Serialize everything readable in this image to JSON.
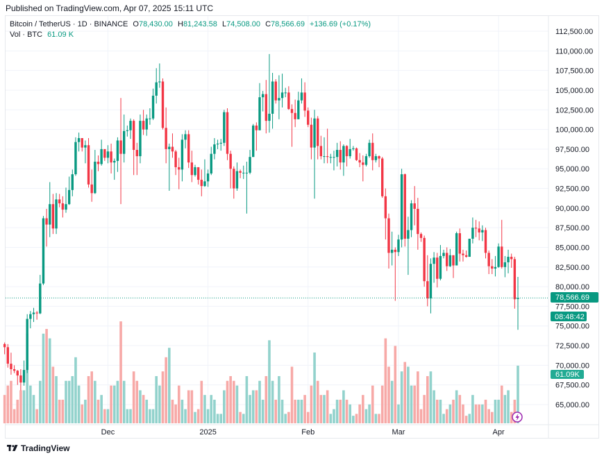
{
  "published": "Published on TradingView.com, Apr 07, 2025 15:11 UTC",
  "legend": {
    "symbol": "Bitcoin / TetherUS · 1D · BINANCE",
    "o_label": "O",
    "open": "78,430.00",
    "h_label": "H",
    "high": "81,243.58",
    "l_label": "L",
    "low": "74,508.00",
    "c_label": "C",
    "close": "78,566.69",
    "change": "+136.69 (+0.17%)",
    "vol_label": "Vol · BTC",
    "vol_value": "61.09 K"
  },
  "colors": {
    "up": "#089981",
    "down": "#f23645",
    "vol_up": "#92d2cc",
    "vol_down": "#f7a9a7",
    "price_tag": "#089981",
    "vol_tag": "#22ab94",
    "event_icon": "#9c27b0"
  },
  "price_tag": {
    "price": "78,566.69",
    "countdown": "08:48:42"
  },
  "vol_tag": "61.09K",
  "brand": "TradingView",
  "event_icon": "lightning-icon",
  "chart_data": {
    "type": "candlestick",
    "title": "",
    "y_ticks": [
      "65,000.00",
      "67,500.00",
      "70,000.00",
      "72,500.00",
      "75,000.00",
      "77,500.00",
      "80,000.00",
      "82,500.00",
      "85,000.00",
      "87,500.00",
      "90,000.00",
      "92,500.00",
      "95,000.00",
      "97,500.00",
      "100,000.00",
      "102,500.00",
      "105,000.00",
      "107,500.00",
      "110,000.00",
      "112,500.00"
    ],
    "ylim": [
      62500,
      112500
    ],
    "x_ticks": [
      {
        "label": "Dec",
        "date": "2024-12-01"
      },
      {
        "label": "2025",
        "date": "2025-01-01"
      },
      {
        "label": "Feb",
        "date": "2025-02-01"
      },
      {
        "label": "Mar",
        "date": "2025-03-01"
      },
      {
        "label": "Apr",
        "date": "2025-04-01"
      }
    ],
    "grid": true,
    "columns": [
      "date",
      "open",
      "high",
      "low",
      "close",
      "volume_k"
    ],
    "candles": [
      [
        "2024-10-30",
        72700,
        72900,
        71400,
        72300,
        30
      ],
      [
        "2024-10-31",
        72300,
        72700,
        69700,
        70200,
        40
      ],
      [
        "2024-11-01",
        70200,
        71600,
        68800,
        69500,
        45
      ],
      [
        "2024-11-02",
        69500,
        70000,
        69000,
        69300,
        15
      ],
      [
        "2024-11-03",
        69300,
        69400,
        67500,
        68700,
        25
      ],
      [
        "2024-11-04",
        68700,
        69500,
        66800,
        67800,
        35
      ],
      [
        "2024-11-05",
        67800,
        70600,
        67400,
        69400,
        35
      ],
      [
        "2024-11-06",
        69400,
        76500,
        69000,
        75900,
        95
      ],
      [
        "2024-11-07",
        75900,
        76900,
        74700,
        76500,
        40
      ],
      [
        "2024-11-08",
        76500,
        77300,
        75500,
        76700,
        30
      ],
      [
        "2024-11-09",
        76700,
        76900,
        75800,
        76600,
        15
      ],
      [
        "2024-11-10",
        76600,
        81500,
        76500,
        80400,
        45
      ],
      [
        "2024-11-11",
        80400,
        89000,
        80200,
        88700,
        95
      ],
      [
        "2024-11-12",
        88700,
        89900,
        85100,
        87900,
        100
      ],
      [
        "2024-11-13",
        87900,
        93300,
        86300,
        90500,
        90
      ],
      [
        "2024-11-14",
        90500,
        91800,
        86700,
        87400,
        60
      ],
      [
        "2024-11-15",
        87400,
        91900,
        86700,
        91100,
        50
      ],
      [
        "2024-11-16",
        91100,
        91800,
        90100,
        90600,
        25
      ],
      [
        "2024-11-17",
        90600,
        91500,
        88800,
        89800,
        25
      ],
      [
        "2024-11-18",
        89800,
        92600,
        89400,
        90500,
        45
      ],
      [
        "2024-11-19",
        90500,
        94000,
        90400,
        92300,
        45
      ],
      [
        "2024-11-20",
        92300,
        94900,
        91500,
        94300,
        50
      ],
      [
        "2024-11-21",
        94300,
        99000,
        94100,
        98400,
        70
      ],
      [
        "2024-11-22",
        98400,
        99600,
        97200,
        98900,
        40
      ],
      [
        "2024-11-23",
        98900,
        98900,
        97200,
        97700,
        20
      ],
      [
        "2024-11-24",
        97700,
        98600,
        95700,
        98000,
        25
      ],
      [
        "2024-11-25",
        98000,
        98900,
        92600,
        93000,
        50
      ],
      [
        "2024-11-26",
        93000,
        94900,
        90800,
        91900,
        55
      ],
      [
        "2024-11-27",
        91900,
        97400,
        91800,
        95900,
        45
      ],
      [
        "2024-11-28",
        95900,
        96700,
        94700,
        95600,
        25
      ],
      [
        "2024-11-29",
        95600,
        98700,
        95400,
        97500,
        30
      ],
      [
        "2024-11-30",
        97500,
        97500,
        96000,
        96400,
        15
      ],
      [
        "2024-12-01",
        96400,
        98000,
        95700,
        97200,
        15
      ],
      [
        "2024-12-02",
        97200,
        98200,
        94400,
        95800,
        40
      ],
      [
        "2024-12-03",
        95800,
        96300,
        93600,
        96000,
        40
      ],
      [
        "2024-12-04",
        96000,
        99000,
        94600,
        98600,
        45
      ],
      [
        "2024-12-05",
        98600,
        104000,
        90500,
        96900,
        108
      ],
      [
        "2024-12-06",
        96900,
        101900,
        95800,
        99800,
        45
      ],
      [
        "2024-12-07",
        99800,
        100500,
        99100,
        99900,
        15
      ],
      [
        "2024-12-08",
        99900,
        101400,
        98800,
        101100,
        15
      ],
      [
        "2024-12-09",
        101100,
        101300,
        94200,
        97400,
        55
      ],
      [
        "2024-12-10",
        97400,
        98300,
        94200,
        96600,
        45
      ],
      [
        "2024-12-11",
        96600,
        101900,
        95700,
        101100,
        35
      ],
      [
        "2024-12-12",
        101100,
        102500,
        99300,
        100000,
        30
      ],
      [
        "2024-12-13",
        100000,
        101900,
        99200,
        101400,
        25
      ],
      [
        "2024-12-14",
        101400,
        102700,
        100600,
        101400,
        15
      ],
      [
        "2024-12-15",
        101400,
        105200,
        101200,
        104300,
        15
      ],
      [
        "2024-12-16",
        104300,
        107800,
        103300,
        106000,
        50
      ],
      [
        "2024-12-17",
        106000,
        108400,
        105300,
        106100,
        40
      ],
      [
        "2024-12-18",
        106100,
        106500,
        100000,
        100200,
        55
      ],
      [
        "2024-12-19",
        100200,
        102800,
        95700,
        97500,
        70
      ],
      [
        "2024-12-20",
        97500,
        98200,
        92200,
        97800,
        80
      ],
      [
        "2024-12-21",
        97800,
        99500,
        96400,
        97200,
        25
      ],
      [
        "2024-12-22",
        97200,
        97400,
        94200,
        95200,
        20
      ],
      [
        "2024-12-23",
        95200,
        96400,
        92400,
        94900,
        40
      ],
      [
        "2024-12-24",
        94900,
        99400,
        93400,
        98700,
        25
      ],
      [
        "2024-12-25",
        98700,
        99900,
        97600,
        99400,
        15
      ],
      [
        "2024-12-26",
        99400,
        99900,
        95100,
        95800,
        35
      ],
      [
        "2024-12-27",
        95800,
        97300,
        93300,
        94200,
        35
      ],
      [
        "2024-12-28",
        94200,
        95500,
        94000,
        95200,
        12
      ],
      [
        "2024-12-29",
        95200,
        95200,
        93000,
        93600,
        15
      ],
      [
        "2024-12-30",
        93600,
        94900,
        91500,
        92800,
        45
      ],
      [
        "2024-12-31",
        92800,
        96200,
        92700,
        93400,
        30
      ],
      [
        "2025-01-01",
        93400,
        94900,
        92700,
        94400,
        15
      ],
      [
        "2025-01-02",
        94400,
        97800,
        94200,
        96900,
        30
      ],
      [
        "2025-01-03",
        96900,
        98900,
        96200,
        98100,
        25
      ],
      [
        "2025-01-04",
        98100,
        98700,
        97500,
        98200,
        10
      ],
      [
        "2025-01-05",
        98200,
        98800,
        97300,
        98300,
        10
      ],
      [
        "2025-01-06",
        98300,
        102500,
        97900,
        102200,
        35
      ],
      [
        "2025-01-07",
        102200,
        102700,
        96100,
        96900,
        45
      ],
      [
        "2025-01-08",
        96900,
        97300,
        92500,
        95000,
        50
      ],
      [
        "2025-01-09",
        95000,
        95300,
        91200,
        92500,
        45
      ],
      [
        "2025-01-10",
        92500,
        95800,
        92200,
        94700,
        40
      ],
      [
        "2025-01-11",
        94700,
        94900,
        93800,
        94500,
        12
      ],
      [
        "2025-01-12",
        94500,
        95400,
        93700,
        94500,
        10
      ],
      [
        "2025-01-13",
        94500,
        95900,
        89300,
        94500,
        50
      ],
      [
        "2025-01-14",
        94500,
        97400,
        94300,
        96500,
        30
      ],
      [
        "2025-01-15",
        96500,
        100700,
        96500,
        100500,
        35
      ],
      [
        "2025-01-16",
        100500,
        100900,
        97300,
        99900,
        35
      ],
      [
        "2025-01-17",
        99900,
        105900,
        99900,
        104100,
        45
      ],
      [
        "2025-01-18",
        104100,
        104900,
        102300,
        104500,
        25
      ],
      [
        "2025-01-19",
        104500,
        106300,
        99500,
        101100,
        50
      ],
      [
        "2025-01-20",
        101100,
        109600,
        99600,
        102000,
        88
      ],
      [
        "2025-01-21",
        102000,
        107200,
        100100,
        106100,
        45
      ],
      [
        "2025-01-22",
        106100,
        106400,
        103300,
        103700,
        25
      ],
      [
        "2025-01-23",
        103700,
        106900,
        101300,
        104000,
        50
      ],
      [
        "2025-01-24",
        104000,
        107100,
        102800,
        104700,
        25
      ],
      [
        "2025-01-25",
        104700,
        105300,
        104100,
        104700,
        10
      ],
      [
        "2025-01-26",
        104700,
        105500,
        102500,
        102600,
        12
      ],
      [
        "2025-01-27",
        102600,
        103200,
        97800,
        102100,
        60
      ],
      [
        "2025-01-28",
        102100,
        103800,
        100300,
        101300,
        25
      ],
      [
        "2025-01-29",
        101300,
        104800,
        101300,
        103700,
        25
      ],
      [
        "2025-01-30",
        103700,
        106500,
        103300,
        104700,
        25
      ],
      [
        "2025-01-31",
        104700,
        106000,
        101600,
        102400,
        30
      ],
      [
        "2025-02-01",
        102400,
        102800,
        100300,
        100600,
        12
      ],
      [
        "2025-02-02",
        100600,
        101500,
        96200,
        97700,
        40
      ],
      [
        "2025-02-03",
        97700,
        102500,
        91200,
        101400,
        75
      ],
      [
        "2025-02-04",
        101400,
        101700,
        96200,
        97900,
        45
      ],
      [
        "2025-02-05",
        97900,
        99200,
        96200,
        96600,
        30
      ],
      [
        "2025-02-06",
        96600,
        99000,
        95700,
        96600,
        30
      ],
      [
        "2025-02-07",
        96600,
        100100,
        95700,
        96500,
        35
      ],
      [
        "2025-02-08",
        96500,
        96900,
        95700,
        96500,
        10
      ],
      [
        "2025-02-09",
        96500,
        97300,
        94800,
        96500,
        15
      ],
      [
        "2025-02-10",
        96500,
        98300,
        95300,
        97400,
        25
      ],
      [
        "2025-02-11",
        97400,
        98500,
        94900,
        95800,
        25
      ],
      [
        "2025-02-12",
        95800,
        98100,
        94100,
        97900,
        35
      ],
      [
        "2025-02-13",
        97900,
        98000,
        95300,
        96600,
        25
      ],
      [
        "2025-02-14",
        96600,
        98800,
        96300,
        97500,
        20
      ],
      [
        "2025-02-15",
        97500,
        97900,
        97300,
        97600,
        8
      ],
      [
        "2025-02-16",
        97600,
        97700,
        96000,
        96100,
        10
      ],
      [
        "2025-02-17",
        96100,
        97000,
        95200,
        95800,
        20
      ],
      [
        "2025-02-18",
        95800,
        96700,
        93400,
        95500,
        30
      ],
      [
        "2025-02-19",
        95500,
        96900,
        95300,
        96600,
        15
      ],
      [
        "2025-02-20",
        96600,
        98700,
        96400,
        98300,
        20
      ],
      [
        "2025-02-21",
        98300,
        99500,
        94800,
        96100,
        40
      ],
      [
        "2025-02-22",
        96100,
        96900,
        95800,
        96600,
        10
      ],
      [
        "2025-02-23",
        96600,
        96700,
        95200,
        96300,
        10
      ],
      [
        "2025-02-24",
        96300,
        96500,
        91300,
        91500,
        40
      ],
      [
        "2025-02-25",
        91500,
        92500,
        86000,
        88700,
        90
      ],
      [
        "2025-02-26",
        88700,
        89300,
        82300,
        84300,
        60
      ],
      [
        "2025-02-27",
        84300,
        87000,
        82700,
        84700,
        45
      ],
      [
        "2025-02-28",
        84700,
        85000,
        78200,
        84400,
        82
      ],
      [
        "2025-03-01",
        84400,
        86600,
        83900,
        86000,
        20
      ],
      [
        "2025-03-02",
        86000,
        95000,
        85000,
        94300,
        55
      ],
      [
        "2025-03-03",
        94300,
        94400,
        85100,
        86100,
        65
      ],
      [
        "2025-03-04",
        86100,
        88900,
        81500,
        87200,
        60
      ],
      [
        "2025-03-05",
        87200,
        91000,
        86300,
        90600,
        40
      ],
      [
        "2025-03-06",
        90600,
        92800,
        87800,
        89900,
        40
      ],
      [
        "2025-03-07",
        89900,
        91300,
        84700,
        86700,
        55
      ],
      [
        "2025-03-08",
        86700,
        86900,
        85700,
        86200,
        15
      ],
      [
        "2025-03-09",
        86200,
        86500,
        80000,
        80700,
        30
      ],
      [
        "2025-03-10",
        80700,
        84000,
        77500,
        78500,
        50
      ],
      [
        "2025-03-11",
        78500,
        83600,
        76600,
        82900,
        55
      ],
      [
        "2025-03-12",
        82900,
        84400,
        80500,
        83700,
        35
      ],
      [
        "2025-03-13",
        83700,
        84300,
        79900,
        81000,
        25
      ],
      [
        "2025-03-14",
        81000,
        85300,
        80800,
        83900,
        25
      ],
      [
        "2025-03-15",
        83900,
        84700,
        83600,
        84300,
        10
      ],
      [
        "2025-03-16",
        84300,
        85000,
        82000,
        82600,
        15
      ],
      [
        "2025-03-17",
        82600,
        84800,
        82500,
        84000,
        20
      ],
      [
        "2025-03-18",
        84000,
        84000,
        81100,
        82700,
        25
      ],
      [
        "2025-03-19",
        82700,
        87000,
        82700,
        86800,
        35
      ],
      [
        "2025-03-20",
        86800,
        87400,
        83200,
        84200,
        30
      ],
      [
        "2025-03-21",
        84200,
        84700,
        83200,
        84000,
        20
      ],
      [
        "2025-03-22",
        84000,
        84600,
        83700,
        83800,
        8
      ],
      [
        "2025-03-23",
        83800,
        86100,
        83800,
        86100,
        10
      ],
      [
        "2025-03-24",
        86100,
        88800,
        85500,
        87500,
        30
      ],
      [
        "2025-03-25",
        87500,
        88500,
        86300,
        87400,
        20
      ],
      [
        "2025-03-26",
        87400,
        88300,
        85900,
        86900,
        20
      ],
      [
        "2025-03-27",
        86900,
        87800,
        85800,
        87200,
        20
      ],
      [
        "2025-03-28",
        87200,
        87500,
        83600,
        84300,
        25
      ],
      [
        "2025-03-29",
        84300,
        84600,
        81600,
        82600,
        15
      ],
      [
        "2025-03-30",
        82600,
        83500,
        81600,
        82300,
        12
      ],
      [
        "2025-03-31",
        82300,
        83900,
        81300,
        82500,
        25
      ],
      [
        "2025-04-01",
        82500,
        85500,
        82400,
        85100,
        25
      ],
      [
        "2025-04-02",
        85100,
        88500,
        82300,
        82500,
        40
      ],
      [
        "2025-04-03",
        82500,
        83900,
        81200,
        83100,
        30
      ],
      [
        "2025-04-04",
        83100,
        84700,
        81700,
        83800,
        35
      ],
      [
        "2025-04-05",
        83800,
        84200,
        82400,
        83500,
        12
      ],
      [
        "2025-04-06",
        83500,
        83800,
        77200,
        78400,
        25
      ],
      [
        "2025-04-07",
        78430,
        81243.58,
        74508,
        78566.69,
        61.09
      ]
    ]
  }
}
